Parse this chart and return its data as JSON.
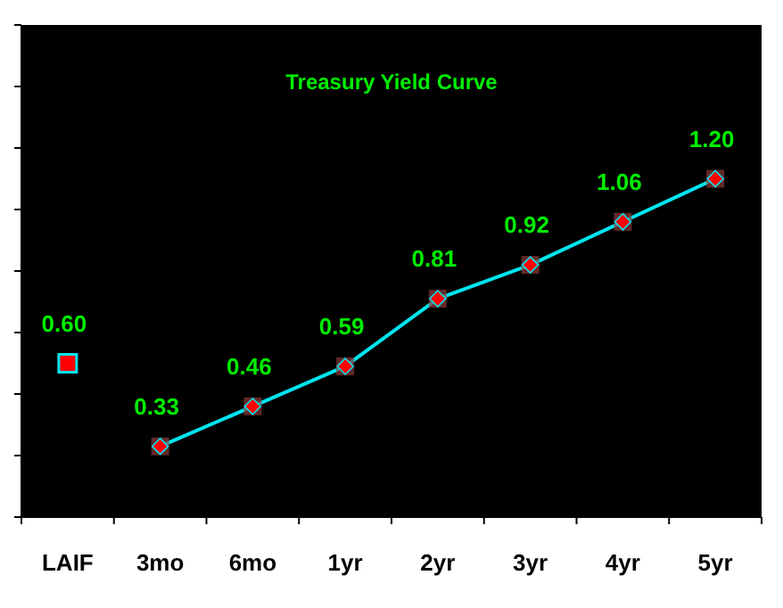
{
  "chart_data": {
    "type": "line",
    "title": "Treasury Yield Curve",
    "categories": [
      "LAIF",
      "3mo",
      "6mo",
      "1yr",
      "2yr",
      "3yr",
      "4yr",
      "5yr"
    ],
    "series": [
      {
        "type": "scatter",
        "marker": "square",
        "color": "#00e5ee",
        "values": [
          0.6,
          null,
          null,
          null,
          null,
          null,
          null,
          null
        ],
        "value_labels": [
          "0.60",
          null,
          null,
          null,
          null,
          null,
          null,
          null
        ]
      },
      {
        "marker": "diamond",
        "color": "#00e5ee",
        "values": [
          null,
          0.33,
          0.46,
          0.59,
          0.81,
          0.92,
          1.06,
          1.2
        ],
        "value_labels": [
          null,
          "0.33",
          "0.46",
          "0.59",
          "0.81",
          "0.92",
          "1.06",
          "1.20"
        ]
      }
    ],
    "ylim": [
      0.1,
      1.7
    ],
    "yticks": [
      {
        "value": 0.1,
        "label": null
      },
      {
        "value": 0.3,
        "label": null
      },
      {
        "value": 0.5,
        "label": null
      },
      {
        "value": 0.7,
        "label": null
      },
      {
        "value": 0.9,
        "label": null
      },
      {
        "value": 1.1,
        "label": null
      },
      {
        "value": 1.3,
        "label": null
      },
      {
        "value": 1.5,
        "label": null
      },
      {
        "value": 1.7,
        "label": null
      }
    ],
    "grid": false
  }
}
